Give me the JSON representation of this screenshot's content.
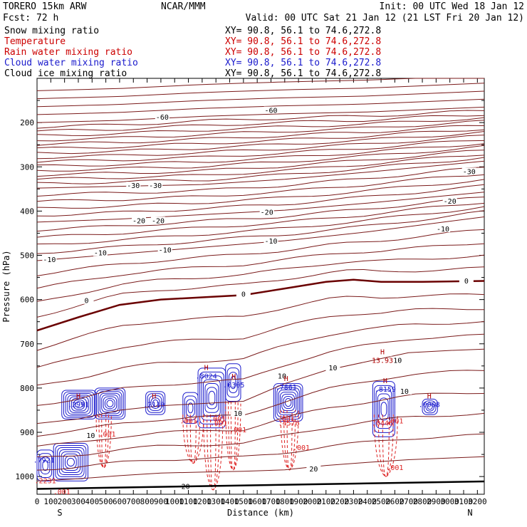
{
  "header": {
    "model": "TORERO  15km ARW",
    "org": "NCAR/MMM",
    "init": "Init: 00 UTC Wed 18 Jan 12",
    "fcst": "Fcst:   72 h",
    "valid": "Valid: 00 UTC Sat 21 Jan 12 (21 LST Fri 20 Jan 12)"
  },
  "fields": [
    {
      "name": "Snow mixing ratio",
      "color": "#000000",
      "xy": "XY=  90.8, 56.1 to  74.6,272.8"
    },
    {
      "name": "Temperature",
      "color": "#cc0000",
      "xy": "XY=  90.8, 56.1 to  74.6,272.8"
    },
    {
      "name": "Rain water mixing ratio",
      "color": "#cc0000",
      "xy": "XY=  90.8, 56.1 to  74.6,272.8"
    },
    {
      "name": "Cloud water mixing ratio",
      "color": "#1a1acc",
      "xy": "XY=  90.8, 56.1 to  74.6,272.8"
    },
    {
      "name": "Cloud ice mixing ratio",
      "color": "#000000",
      "xy": "XY=  90.8, 56.1 to  74.6,272.8"
    }
  ],
  "chart_data": {
    "type": "line",
    "xlabel": "Distance (km)",
    "ylabel": "Pressure (hPa)",
    "xlim": [
      0,
      3250
    ],
    "ylim": [
      1040,
      100
    ],
    "x_ticks": [
      0,
      100,
      200,
      300,
      400,
      500,
      600,
      700,
      800,
      900,
      1000,
      1100,
      1200,
      1300,
      1400,
      1500,
      1600,
      1700,
      1800,
      1900,
      2000,
      2100,
      2200,
      2300,
      2400,
      2500,
      2600,
      2700,
      2800,
      2900,
      3000,
      3100,
      3200
    ],
    "y_ticks": [
      200,
      300,
      400,
      500,
      600,
      700,
      800,
      900,
      1000
    ],
    "x_end_labels": {
      "left": "S",
      "right": "N"
    },
    "temperature_isotherms": [
      {
        "value": -60,
        "x": [
          0,
          600,
          1200,
          1800,
          2400,
          3250
        ],
        "p": [
          200,
          195,
          186,
          180,
          176,
          165
        ]
      },
      {
        "value": -30,
        "x": [
          0,
          600,
          1200,
          1800,
          2400,
          3250
        ],
        "p": [
          348,
          344,
          340,
          328,
          312,
          287
        ]
      },
      {
        "value": -20,
        "x": [
          0,
          600,
          1200,
          1800,
          2400,
          3250
        ],
        "p": [
          425,
          418,
          408,
          398,
          382,
          357
        ]
      },
      {
        "value": -10,
        "x": [
          0,
          600,
          1200,
          1800,
          2400,
          3250
        ],
        "p": [
          512,
          497,
          482,
          467,
          447,
          413
        ]
      },
      {
        "value": 0,
        "x": [
          0,
          300,
          600,
          900,
          1200,
          1500,
          1800,
          2100,
          2300,
          2500,
          2800,
          3250
        ],
        "p": [
          670,
          640,
          612,
          600,
          595,
          590,
          575,
          560,
          555,
          560,
          560,
          558
        ]
      },
      {
        "value": 10,
        "x": [
          0,
          300,
          600,
          900,
          1200,
          1500,
          1800,
          2100,
          2400,
          2700,
          3000,
          3250
        ],
        "p": [
          880,
          870,
          850,
          840,
          835,
          830,
          790,
          760,
          740,
          720,
          715,
          712
        ]
      },
      {
        "value": 20,
        "x": [
          0,
          300,
          600,
          900,
          1200,
          1500,
          1800,
          2100,
          2400,
          2700,
          3000,
          3250
        ],
        "p": [
          1010,
          1005,
          998,
          992,
          990,
          988,
          985,
          975,
          968,
          962,
          958,
          955
        ]
      }
    ],
    "isotherm_labels": [
      {
        "text": "-60",
        "x": 910,
        "p": 190
      },
      {
        "text": "-60",
        "x": 1700,
        "p": 175
      },
      {
        "text": "-30",
        "x": 700,
        "p": 345
      },
      {
        "text": "-30",
        "x": 860,
        "p": 345
      },
      {
        "text": "-30",
        "x": 3140,
        "p": 313
      },
      {
        "text": "-20",
        "x": 740,
        "p": 424
      },
      {
        "text": "-20",
        "x": 880,
        "p": 424
      },
      {
        "text": "-20",
        "x": 1670,
        "p": 405
      },
      {
        "text": "-20",
        "x": 3000,
        "p": 380
      },
      {
        "text": "-10",
        "x": 90,
        "p": 512
      },
      {
        "text": "-10",
        "x": 460,
        "p": 497
      },
      {
        "text": "-10",
        "x": 930,
        "p": 490
      },
      {
        "text": "-10",
        "x": 1700,
        "p": 470
      },
      {
        "text": "-10",
        "x": 2950,
        "p": 443
      },
      {
        "text": "0",
        "x": 360,
        "p": 605
      },
      {
        "text": "0",
        "x": 1500,
        "p": 590
      },
      {
        "text": "0",
        "x": 3120,
        "p": 560
      },
      {
        "text": "10",
        "x": 2150,
        "p": 757
      },
      {
        "text": "10",
        "x": 1780,
        "p": 775
      },
      {
        "text": "10",
        "x": 2620,
        "p": 740
      },
      {
        "text": "10",
        "x": 2670,
        "p": 810
      },
      {
        "text": "10",
        "x": 1460,
        "p": 860
      },
      {
        "text": "10",
        "x": 390,
        "p": 910
      },
      {
        "text": "20",
        "x": 2010,
        "p": 985
      },
      {
        "text": "20",
        "x": 1080,
        "p": 1025
      }
    ],
    "cloud_maxima": [
      {
        "label": "H",
        "value": ".2991",
        "x": 300,
        "p": 840
      },
      {
        "label": "H",
        "value": ".2110",
        "x": 850,
        "p": 840
      },
      {
        "label": "H",
        "value": ".8024",
        "x": 1230,
        "p": 775
      },
      {
        "label": "H",
        "value": ".0305",
        "x": 1430,
        "p": 795
      },
      {
        "label": "H",
        "value": ".7861",
        "x": 1810,
        "p": 800
      },
      {
        "label": "H",
        "value": ".8159",
        "x": 2530,
        "p": 805
      },
      {
        "label": "H",
        "value": ".0068",
        "x": 2850,
        "p": 840
      },
      {
        "label": "H",
        "value": "13.93",
        "x": 2510,
        "p": 740
      },
      {
        "label": "",
        "value": ".7921",
        "x": 50,
        "p": 965
      }
    ],
    "rain_labels": [
      {
        "text": ".001",
        "x": 1100,
        "p": 880
      },
      {
        "text": ".001",
        "x": 1310,
        "p": 875
      },
      {
        "text": ".001",
        "x": 1460,
        "p": 900
      },
      {
        "text": ".001",
        "x": 1320,
        "p": 885
      },
      {
        "text": ".001",
        "x": 1810,
        "p": 875
      },
      {
        "text": ".001",
        "x": 1920,
        "p": 940
      },
      {
        "text": ".001",
        "x": 2600,
        "p": 880
      },
      {
        "text": ".001",
        "x": 2600,
        "p": 985
      },
      {
        "text": ".001",
        "x": 510,
        "p": 910
      },
      {
        "text": ".001",
        "x": 180,
        "p": 1040
      },
      {
        "text": ".4576",
        "x": 1830,
        "p": 885
      },
      {
        "text": ".0446",
        "x": 2510,
        "p": 885
      },
      {
        "text": ".2231",
        "x": 60,
        "p": 1015
      }
    ],
    "surface_pressure": {
      "x": [
        0,
        3250
      ],
      "p": [
        1028,
        1011
      ]
    },
    "cloud_cells": [
      {
        "x": [
          0,
          120
        ],
        "p": [
          940,
          1010
        ]
      },
      {
        "x": [
          120,
          370
        ],
        "p": [
          925,
          1010
        ]
      },
      {
        "x": [
          180,
          430
        ],
        "p": [
          805,
          870
        ]
      },
      {
        "x": [
          420,
          640
        ],
        "p": [
          800,
          870
        ]
      },
      {
        "x": [
          790,
          930
        ],
        "p": [
          808,
          860
        ]
      },
      {
        "x": [
          1060,
          1170
        ],
        "p": [
          810,
          880
        ]
      },
      {
        "x": [
          1170,
          1370
        ],
        "p": [
          755,
          890
        ]
      },
      {
        "x": [
          1370,
          1480
        ],
        "p": [
          745,
          830
        ]
      },
      {
        "x": [
          1720,
          1930
        ],
        "p": [
          790,
          875
        ]
      },
      {
        "x": [
          2440,
          2600
        ],
        "p": [
          785,
          910
        ]
      },
      {
        "x": [
          2800,
          2910
        ],
        "p": [
          825,
          860
        ]
      }
    ],
    "rain_shafts": [
      {
        "x": [
          430,
          540
        ],
        "p": [
          860,
          980
        ]
      },
      {
        "x": [
          1060,
          1210
        ],
        "p": [
          860,
          970
        ]
      },
      {
        "x": [
          1210,
          1350
        ],
        "p": [
          860,
          1030
        ]
      },
      {
        "x": [
          1370,
          1480
        ],
        "p": [
          830,
          985
        ]
      },
      {
        "x": [
          1770,
          1900
        ],
        "p": [
          850,
          985
        ]
      },
      {
        "x": [
          2450,
          2620
        ],
        "p": [
          860,
          1000
        ]
      }
    ]
  }
}
